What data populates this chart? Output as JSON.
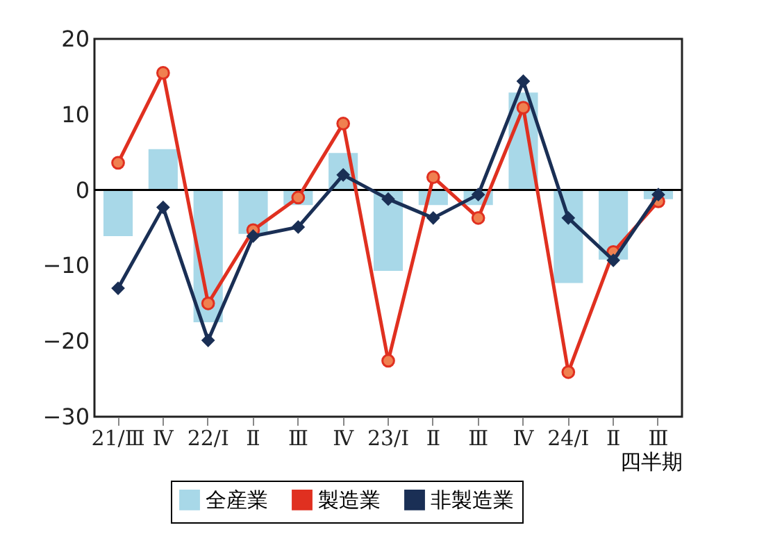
{
  "chart_data": {
    "type": "bar",
    "xlabel": "四半期",
    "categories": [
      "21/Ⅲ",
      "Ⅳ",
      "22/Ⅰ",
      "Ⅱ",
      "Ⅲ",
      "Ⅳ",
      "23/Ⅰ",
      "Ⅱ",
      "Ⅲ",
      "Ⅳ",
      "24/Ⅰ",
      "Ⅱ",
      "Ⅲ"
    ],
    "series": [
      {
        "name": "全産業",
        "type": "bar",
        "color": "#a8d8e8",
        "values": [
          -6.1,
          5.4,
          -17.5,
          -5.8,
          -2,
          4.9,
          -10.7,
          -2,
          -2,
          12.9,
          -12.3,
          -9.2,
          -1.2
        ]
      },
      {
        "name": "製造業",
        "type": "line",
        "color": "#e03020",
        "marker": "circle",
        "values": [
          3.6,
          15.5,
          -15,
          -5.3,
          -1,
          8.8,
          -22.6,
          1.7,
          -3.7,
          10.9,
          -24.1,
          -8.2,
          -1.5
        ]
      },
      {
        "name": "非製造業",
        "type": "line",
        "color": "#1a2f55",
        "marker": "diamond",
        "values": [
          -13,
          -2.3,
          -19.9,
          -6.1,
          -4.9,
          2,
          -1.2,
          -3.7,
          -0.6,
          14.4,
          -3.7,
          -9.3,
          -0.6
        ]
      }
    ],
    "ylim": [
      -30,
      20
    ],
    "yticks": [
      -30,
      -20,
      -10,
      0,
      10,
      20
    ],
    "ref_lines": [
      {
        "axis": "y",
        "value": 0,
        "color": "#000000"
      }
    ],
    "grid": false,
    "legend": "bottom"
  }
}
